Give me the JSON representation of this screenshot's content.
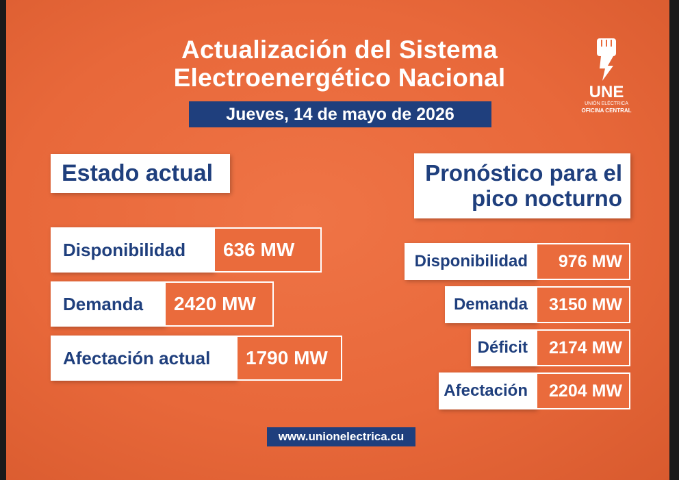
{
  "header": {
    "title_lines": [
      "Actualización del Sistema",
      "Electroenergético Nacional"
    ],
    "date": "Jueves, 14 de mayo de 2026"
  },
  "logo": {
    "name": "UNE",
    "line1": "UNIÓN ELÉCTRICA",
    "line2": "OFICINA CENTRAL"
  },
  "current": {
    "heading": "Estado actual",
    "rows": [
      {
        "label": "Disponibilidad",
        "value": "636 MW"
      },
      {
        "label": "Demanda",
        "value": "2420 MW"
      },
      {
        "label": "Afectación actual",
        "value": "1790 MW"
      }
    ]
  },
  "forecast": {
    "heading_lines": [
      "Pronóstico para el",
      "pico nocturno"
    ],
    "rows": [
      {
        "label": "Disponibilidad",
        "value": "976 MW"
      },
      {
        "label": "Demanda",
        "value": "3150 MW"
      },
      {
        "label": "Déficit",
        "value": "2174 MW"
      },
      {
        "label": "Afectación",
        "value": "2204 MW"
      }
    ]
  },
  "footer": {
    "url": "www.unionelectrica.cu"
  }
}
